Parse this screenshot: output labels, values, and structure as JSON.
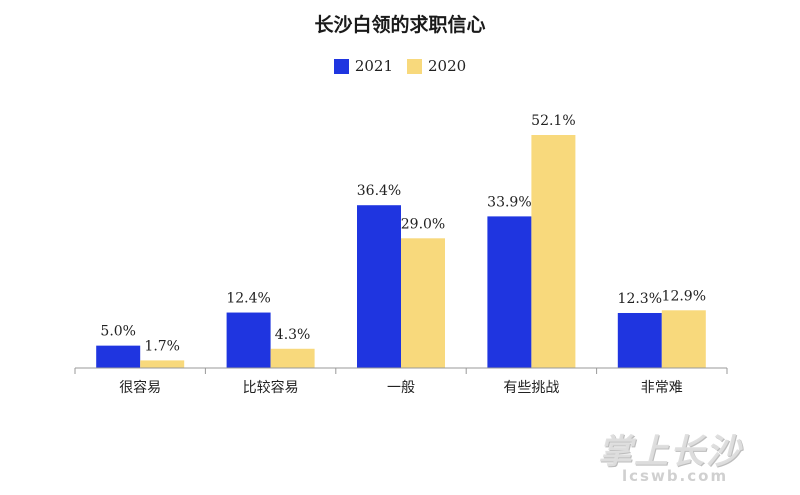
{
  "chart_data": {
    "type": "bar",
    "title": "长沙白领的求职信心",
    "categories": [
      "很容易",
      "比较容易",
      "一般",
      "有些挑战",
      "非常难"
    ],
    "series": [
      {
        "name": "2021",
        "values": [
          5.0,
          12.4,
          36.4,
          33.9,
          12.3
        ],
        "labels": [
          "5.0%",
          "12.4%",
          "36.4%",
          "33.9%",
          "12.3%"
        ],
        "color": "#1f35e0"
      },
      {
        "name": "2020",
        "values": [
          1.7,
          4.3,
          29.0,
          52.1,
          12.9
        ],
        "labels": [
          "1.7%",
          "4.3%",
          "29.0%",
          "52.1%",
          "12.9%"
        ],
        "color": "#f8d97c"
      }
    ],
    "xlabel": "",
    "ylabel": "",
    "grid": false,
    "legend_position": "top-center"
  },
  "watermark": {
    "line1": "掌上长沙",
    "line2": "lcswb.com"
  }
}
